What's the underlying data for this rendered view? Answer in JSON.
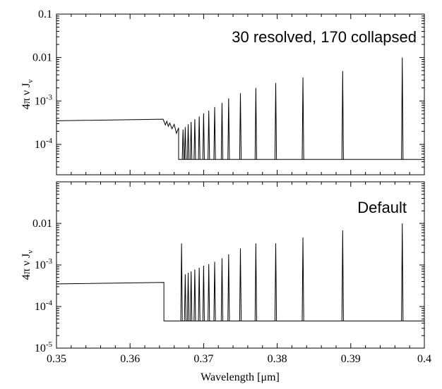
{
  "chart_data": [
    {
      "type": "line",
      "panel": "top",
      "annotation": "30 resolved, 170 collapsed",
      "ylabel": "4π ν J",
      "ylabel_sub": "ν",
      "yscale": "log",
      "ylim": [
        2e-05,
        0.1
      ],
      "xlim": [
        0.35,
        0.4
      ],
      "yticks": [
        {
          "value": 0.1,
          "text": "0.1"
        },
        {
          "value": 0.01,
          "text": "0.01"
        },
        {
          "value": 0.001,
          "base": "10",
          "exp": "-3"
        },
        {
          "value": 0.0001,
          "base": "10",
          "exp": "-4"
        }
      ],
      "continuum": {
        "x_start": 0.35,
        "x_end": 0.3645,
        "y_start": 0.00035,
        "y_end": 0.00038
      },
      "transition_wiggles": [
        {
          "x": 0.3648,
          "y": 0.00028
        },
        {
          "x": 0.365,
          "y": 0.00034
        },
        {
          "x": 0.3652,
          "y": 0.00026
        },
        {
          "x": 0.3654,
          "y": 0.00031
        },
        {
          "x": 0.3657,
          "y": 0.00023
        },
        {
          "x": 0.366,
          "y": 0.00029
        },
        {
          "x": 0.3663,
          "y": 0.00018
        },
        {
          "x": 0.3666,
          "y": 0.00024
        }
      ],
      "baseline": 4.5e-05,
      "lines": [
        {
          "x": 0.3672,
          "y": 0.00022
        },
        {
          "x": 0.3675,
          "y": 0.00025
        },
        {
          "x": 0.3679,
          "y": 0.00029
        },
        {
          "x": 0.3683,
          "y": 0.00033
        },
        {
          "x": 0.3688,
          "y": 0.00038
        },
        {
          "x": 0.3694,
          "y": 0.00044
        },
        {
          "x": 0.37,
          "y": 0.00052
        },
        {
          "x": 0.3707,
          "y": 0.0006
        },
        {
          "x": 0.3715,
          "y": 0.00073
        },
        {
          "x": 0.3725,
          "y": 0.0009
        },
        {
          "x": 0.3734,
          "y": 0.00115
        },
        {
          "x": 0.375,
          "y": 0.0015
        },
        {
          "x": 0.3771,
          "y": 0.002
        },
        {
          "x": 0.3798,
          "y": 0.0026
        },
        {
          "x": 0.3835,
          "y": 0.0035
        },
        {
          "x": 0.3889,
          "y": 0.0049
        },
        {
          "x": 0.397,
          "y": 0.01
        }
      ]
    },
    {
      "type": "line",
      "panel": "bottom",
      "annotation": "Default",
      "ylabel": "4π ν J",
      "ylabel_sub": "ν",
      "yscale": "log",
      "ylim": [
        1e-05,
        0.1
      ],
      "xlim": [
        0.35,
        0.4
      ],
      "xlabel": "Wavelength [μm]",
      "xticks": [
        {
          "value": 0.35,
          "text": "0.35"
        },
        {
          "value": 0.36,
          "text": "0.36"
        },
        {
          "value": 0.37,
          "text": "0.37"
        },
        {
          "value": 0.38,
          "text": "0.38"
        },
        {
          "value": 0.39,
          "text": "0.39"
        },
        {
          "value": 0.4,
          "text": "0.4"
        }
      ],
      "yticks": [
        {
          "value": 0.01,
          "text": "0.01"
        },
        {
          "value": 0.001,
          "base": "10",
          "exp": "-3"
        },
        {
          "value": 0.0001,
          "base": "10",
          "exp": "-4"
        },
        {
          "value": 1e-05,
          "base": "10",
          "exp": "-5"
        }
      ],
      "continuum": {
        "x_start": 0.35,
        "x_end": 0.3646,
        "y_start": 0.00035,
        "y_end": 0.00038
      },
      "baseline": 4.5e-05,
      "lines": [
        {
          "x": 0.367,
          "y": 0.0033
        },
        {
          "x": 0.3675,
          "y": 0.0006
        },
        {
          "x": 0.3679,
          "y": 0.00065
        },
        {
          "x": 0.3683,
          "y": 0.0007
        },
        {
          "x": 0.3688,
          "y": 0.00078
        },
        {
          "x": 0.3694,
          "y": 0.00086
        },
        {
          "x": 0.37,
          "y": 0.00096
        },
        {
          "x": 0.3707,
          "y": 0.00105
        },
        {
          "x": 0.3715,
          "y": 0.0012
        },
        {
          "x": 0.3725,
          "y": 0.00145
        },
        {
          "x": 0.3734,
          "y": 0.0018
        },
        {
          "x": 0.375,
          "y": 0.0025
        },
        {
          "x": 0.3771,
          "y": 0.0033
        },
        {
          "x": 0.3798,
          "y": 0.0033
        },
        {
          "x": 0.3835,
          "y": 0.0046
        },
        {
          "x": 0.3889,
          "y": 0.0068
        },
        {
          "x": 0.397,
          "y": 0.01
        }
      ]
    }
  ]
}
